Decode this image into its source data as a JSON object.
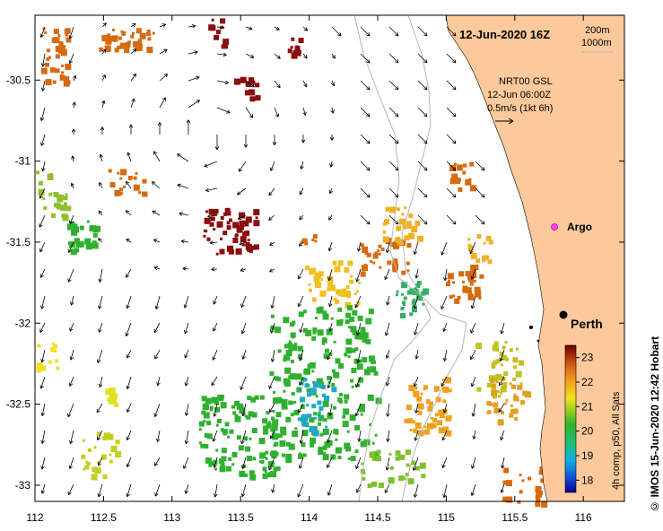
{
  "map": {
    "date_label": "12-Jun-2020 16Z",
    "depth_contours": [
      "200m",
      "1000m"
    ],
    "currents": {
      "lines": [
        "NRT00 GSL",
        "12-Jun 06:00Z",
        "0.5m/s (1kt 6h)"
      ]
    },
    "places": {
      "argo": "Argo",
      "perth": "Perth"
    },
    "colorbar": {
      "title": "4h comp, p50, All Sats",
      "ticks": [
        "23",
        "22",
        "21",
        "20",
        "19",
        "18"
      ],
      "min": 17.5,
      "max": 23.5
    },
    "axes": {
      "x_ticks": [
        "112",
        "112.5",
        "113",
        "113.5",
        "114",
        "114.5",
        "115",
        "115.5",
        "116"
      ],
      "y_ticks": [
        "-30.5",
        "-31",
        "-31.5",
        "-32",
        "-32.5",
        "-33"
      ],
      "x_range": [
        112,
        116.3
      ],
      "y_range": [
        -30.1,
        -33.1
      ]
    },
    "credit": "© IMOS 15-Jun-2020 12:42 Hobart",
    "colors": {
      "land": "#fbc99b",
      "ocean": "#ffffff",
      "warm_red": "#8b0d0d",
      "orange": "#d66a10",
      "yellow": "#f0d020",
      "green": "#30b030",
      "cyan": "#20a8c8"
    }
  }
}
